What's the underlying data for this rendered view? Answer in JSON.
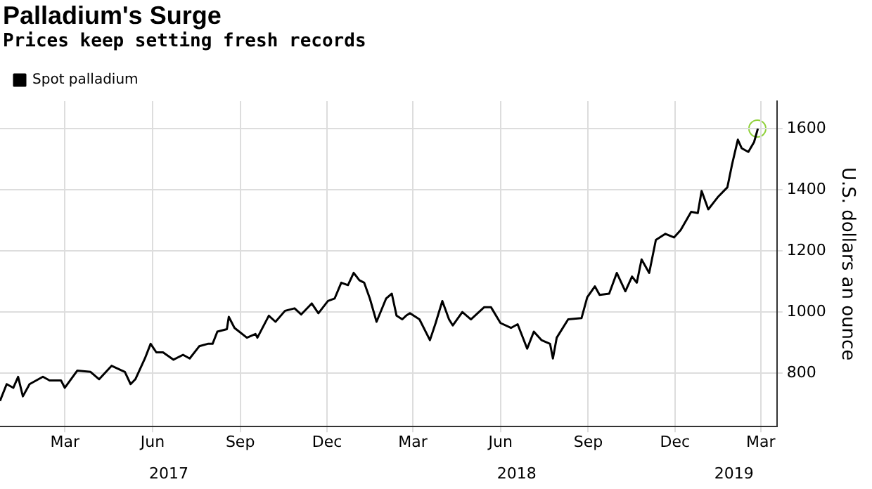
{
  "chart_data": {
    "type": "line",
    "title": "Palladium's Surge",
    "subtitle": "Prices keep setting fresh records",
    "ylabel": "U.S. dollars an ounce",
    "x": [
      "2017-01-06",
      "2017-01-13",
      "2017-01-20",
      "2017-01-25",
      "2017-01-30",
      "2017-02-06",
      "2017-02-20",
      "2017-02-27",
      "2017-03-11",
      "2017-03-15",
      "2017-03-28",
      "2017-04-11",
      "2017-04-20",
      "2017-05-03",
      "2017-05-17",
      "2017-05-23",
      "2017-05-28",
      "2017-06-07",
      "2017-06-13",
      "2017-06-19",
      "2017-06-26",
      "2017-07-07",
      "2017-07-17",
      "2017-07-24",
      "2017-08-03",
      "2017-08-12",
      "2017-08-17",
      "2017-08-22",
      "2017-09-01",
      "2017-09-03",
      "2017-09-09",
      "2017-09-22",
      "2017-10-01",
      "2017-10-03",
      "2017-10-15",
      "2017-10-22",
      "2017-11-01",
      "2017-11-11",
      "2017-11-18",
      "2017-11-29",
      "2017-12-06",
      "2017-12-16",
      "2017-12-23",
      "2017-12-30",
      "2018-01-06",
      "2018-01-12",
      "2018-01-18",
      "2018-01-23",
      "2018-01-29",
      "2018-02-05",
      "2018-02-15",
      "2018-02-21",
      "2018-02-26",
      "2018-03-04",
      "2018-03-08",
      "2018-03-12",
      "2018-03-22",
      "2018-04-02",
      "2018-04-08",
      "2018-04-15",
      "2018-04-22",
      "2018-04-26",
      "2018-05-06",
      "2018-05-15",
      "2018-05-29",
      "2018-06-05",
      "2018-06-15",
      "2018-06-26",
      "2018-07-03",
      "2018-07-13",
      "2018-07-20",
      "2018-07-28",
      "2018-08-06",
      "2018-08-09",
      "2018-08-13",
      "2018-08-25",
      "2018-09-08",
      "2018-09-14",
      "2018-09-22",
      "2018-09-27",
      "2018-10-07",
      "2018-10-15",
      "2018-10-24",
      "2018-10-31",
      "2018-11-05",
      "2018-11-10",
      "2018-11-18",
      "2018-11-25",
      "2018-12-05",
      "2018-12-14",
      "2018-12-21",
      "2019-01-01",
      "2019-01-08",
      "2019-01-12",
      "2019-01-19",
      "2019-01-29",
      "2019-02-08",
      "2019-02-13",
      "2019-02-19",
      "2019-02-23",
      "2019-03-02",
      "2019-03-08",
      "2019-03-12"
    ],
    "series": [
      {
        "name": "Spot palladium",
        "color": "#000000",
        "values": [
          709,
          764,
          752,
          788,
          724,
          764,
          788,
          776,
          776,
          752,
          808,
          804,
          780,
          824,
          804,
          764,
          780,
          848,
          896,
          868,
          868,
          844,
          860,
          848,
          888,
          896,
          896,
          936,
          944,
          984,
          948,
          916,
          928,
          916,
          988,
          968,
          1004,
          1012,
          992,
          1028,
          996,
          1036,
          1044,
          1096,
          1088,
          1128,
          1104,
          1096,
          1044,
          968,
          1044,
          1060,
          988,
          976,
          988,
          996,
          976,
          908,
          964,
          1036,
          976,
          956,
          1000,
          976,
          1016,
          1016,
          964,
          948,
          960,
          880,
          936,
          908,
          896,
          848,
          916,
          976,
          980,
          1048,
          1084,
          1056,
          1060,
          1128,
          1068,
          1116,
          1096,
          1172,
          1128,
          1236,
          1256,
          1244,
          1268,
          1328,
          1324,
          1396,
          1336,
          1376,
          1408,
          1484,
          1564,
          1536,
          1524,
          1556,
          1600
        ]
      }
    ],
    "xlim": [
      "2017-01-06",
      "2019-04-01"
    ],
    "xticks": [
      {
        "value": "2017-03-15",
        "label": "Mar"
      },
      {
        "value": "2017-06-15",
        "label": "Jun"
      },
      {
        "value": "2017-09-15",
        "label": "Sep"
      },
      {
        "value": "2017-12-15",
        "label": "Dec"
      },
      {
        "value": "2018-03-15",
        "label": "Mar"
      },
      {
        "value": "2018-06-15",
        "label": "Jun"
      },
      {
        "value": "2018-09-15",
        "label": "Sep"
      },
      {
        "value": "2018-12-15",
        "label": "Dec"
      },
      {
        "value": "2019-03-15",
        "label": "Mar"
      }
    ],
    "x2lim": [
      "2017-01-06",
      "2019-04-01"
    ],
    "x2ticks": [
      {
        "value": "2017-07-02",
        "label": "2017"
      },
      {
        "value": "2018-07-02",
        "label": "2018"
      },
      {
        "value": "2019-02-15",
        "label": "2019"
      }
    ],
    "ylim": [
      625,
      1690
    ],
    "yticks": [
      800,
      1000,
      1200,
      1400,
      1600
    ],
    "grid": true,
    "legend": "top left",
    "line_style": "solid",
    "marker": "none"
  }
}
